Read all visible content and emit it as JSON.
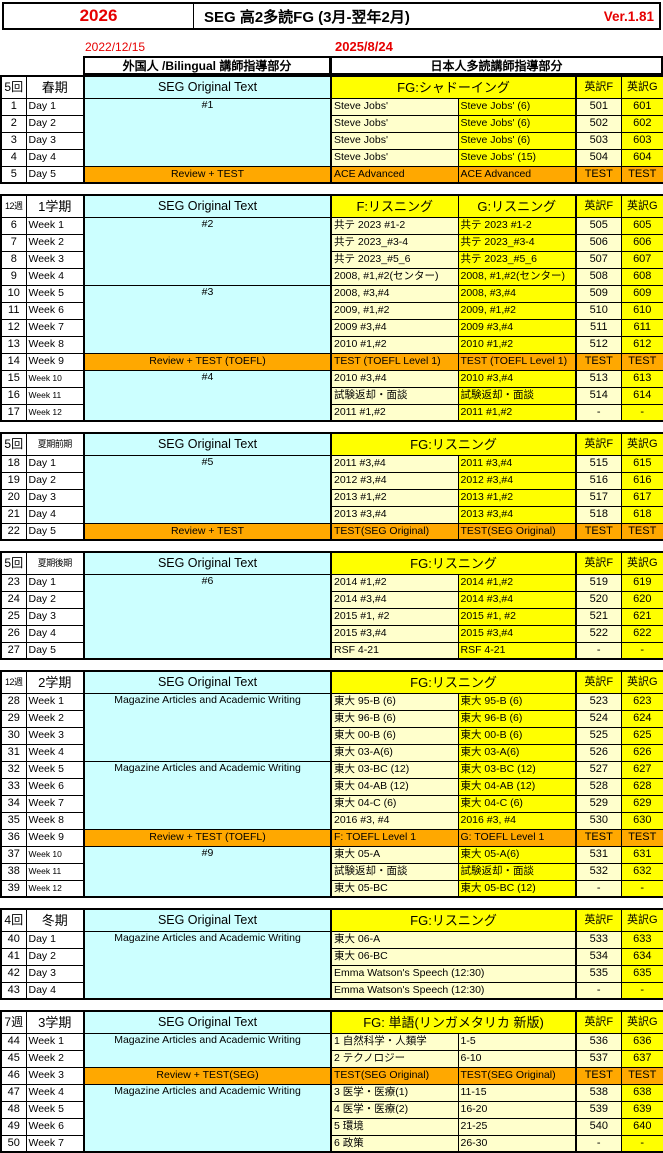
{
  "header": {
    "year": "2026",
    "title": "SEG 高2多読FG (3月-翌年2月)",
    "version": "Ver.1.81",
    "date_left": "2022/12/15",
    "date_right": "2025/8/24",
    "col_foreign": "外国人 /Bilingual 講師指導部分",
    "col_japanese": "日本人多読講師指導部分"
  },
  "sections": [
    {
      "count": "5回",
      "term": "春期",
      "seg_header": "SEG Original Text",
      "fg_header": "FG:シャドーイング",
      "fg_split": null,
      "en_f_header": "英訳F",
      "en_g_header": "英訳G",
      "g_light": false,
      "seg_cells": [
        {
          "text": "#1",
          "rows": 4,
          "orange": false
        },
        {
          "text": "Review + TEST",
          "rows": 1,
          "orange": true
        }
      ],
      "rows": [
        {
          "no": "1",
          "day": "Day 1",
          "f": "Steve Jobs'",
          "g": "Steve Jobs' (6)",
          "ef": "501",
          "eg": "601",
          "kind": "n"
        },
        {
          "no": "2",
          "day": "Day 2",
          "f": "Steve Jobs'",
          "g": "Steve Jobs' (6)",
          "ef": "502",
          "eg": "602",
          "kind": "n"
        },
        {
          "no": "3",
          "day": "Day 3",
          "f": "Steve Jobs'",
          "g": "Steve Jobs' (6)",
          "ef": "503",
          "eg": "603",
          "kind": "n"
        },
        {
          "no": "4",
          "day": "Day 4",
          "f": "Steve Jobs'",
          "g": "Steve Jobs' (15)",
          "ef": "504",
          "eg": "604",
          "kind": "n"
        },
        {
          "no": "5",
          "day": "Day 5",
          "f": "ACE Advanced",
          "g": "ACE Advanced",
          "ef": "TEST",
          "eg": "TEST",
          "kind": "t"
        }
      ]
    },
    {
      "count": "12週",
      "term": "1学期",
      "seg_header": "SEG Original Text",
      "fg_header": null,
      "fg_split": {
        "f": "F:リスニング",
        "g": "G:リスニング"
      },
      "en_f_header": "英訳F",
      "en_g_header": "英訳G",
      "g_light": false,
      "seg_cells": [
        {
          "text": "#2",
          "rows": 4,
          "orange": false
        },
        {
          "text": "#3",
          "rows": 4,
          "orange": false
        },
        {
          "text": "Review + TEST (TOEFL)",
          "rows": 1,
          "orange": true
        },
        {
          "text": "#4",
          "rows": 3,
          "orange": false
        }
      ],
      "rows": [
        {
          "no": "6",
          "day": "Week 1",
          "f": "共テ 2023 #1-2",
          "g": "共テ 2023 #1-2",
          "ef": "505",
          "eg": "605",
          "kind": "n"
        },
        {
          "no": "7",
          "day": "Week 2",
          "f": "共テ 2023_#3-4",
          "g": "共テ 2023_#3-4",
          "ef": "506",
          "eg": "606",
          "kind": "n"
        },
        {
          "no": "8",
          "day": "Week 3",
          "f": "共テ 2023_#5_6",
          "g": "共テ 2023_#5_6",
          "ef": "507",
          "eg": "607",
          "kind": "n"
        },
        {
          "no": "9",
          "day": "Week 4",
          "f": "2008, #1,#2(センター)",
          "g": "2008, #1,#2(センター)",
          "ef": "508",
          "eg": "608",
          "kind": "n"
        },
        {
          "no": "10",
          "day": "Week 5",
          "f": "2008, #3,#4",
          "g": "2008, #3,#4",
          "ef": "509",
          "eg": "609",
          "kind": "n"
        },
        {
          "no": "11",
          "day": "Week 6",
          "f": "2009, #1,#2",
          "g": "2009, #1,#2",
          "ef": "510",
          "eg": "610",
          "kind": "n"
        },
        {
          "no": "12",
          "day": "Week 7",
          "f": "2009 #3,#4",
          "g": "2009 #3,#4",
          "ef": "511",
          "eg": "611",
          "kind": "n"
        },
        {
          "no": "13",
          "day": "Week 8",
          "f": "2010 #1,#2",
          "g": "2010 #1,#2",
          "ef": "512",
          "eg": "612",
          "kind": "n"
        },
        {
          "no": "14",
          "day": "Week 9",
          "f": "TEST (TOEFL Level 1)",
          "g": "TEST (TOEFL Level 1)",
          "ef": "TEST",
          "eg": "TEST",
          "kind": "t"
        },
        {
          "no": "15",
          "day": "Week 10",
          "f": "2010 #3,#4",
          "g": "2010 #3,#4",
          "ef": "513",
          "eg": "613",
          "kind": "n"
        },
        {
          "no": "16",
          "day": "Week 11",
          "f": "試験返却・面談",
          "g": "試験返却・面談",
          "ef": "514",
          "eg": "614",
          "kind": "n"
        },
        {
          "no": "17",
          "day": "Week 12",
          "f": "2011 #1,#2",
          "g": "2011 #1,#2",
          "ef": "-",
          "eg": "-",
          "kind": "n"
        }
      ]
    },
    {
      "count": "5回",
      "term": "夏期前期",
      "seg_header": "SEG Original Text",
      "fg_header": "FG:リスニング",
      "fg_split": null,
      "en_f_header": "英訳F",
      "en_g_header": "英訳G",
      "g_light": false,
      "seg_cells": [
        {
          "text": "#5",
          "rows": 4,
          "orange": false
        },
        {
          "text": "Review + TEST",
          "rows": 1,
          "orange": true
        }
      ],
      "rows": [
        {
          "no": "18",
          "day": "Day 1",
          "f": "2011 #3,#4",
          "g": "2011 #3,#4",
          "ef": "515",
          "eg": "615",
          "kind": "n"
        },
        {
          "no": "19",
          "day": "Day 2",
          "f": "2012 #3,#4",
          "g": "2012 #3,#4",
          "ef": "516",
          "eg": "616",
          "kind": "n"
        },
        {
          "no": "20",
          "day": "Day 3",
          "f": "2013 #1,#2",
          "g": "2013 #1,#2",
          "ef": "517",
          "eg": "617",
          "kind": "n"
        },
        {
          "no": "21",
          "day": "Day 4",
          "f": "2013 #3,#4",
          "g": "2013 #3,#4",
          "ef": "518",
          "eg": "618",
          "kind": "n"
        },
        {
          "no": "22",
          "day": "Day 5",
          "f": "TEST(SEG Original)",
          "g": "TEST(SEG Original)",
          "ef": "TEST",
          "eg": "TEST",
          "kind": "t"
        }
      ]
    },
    {
      "count": "5回",
      "term": "夏期後期",
      "seg_header": "SEG Original Text",
      "fg_header": "FG:リスニング",
      "fg_split": null,
      "en_f_header": "英訳F",
      "en_g_header": "英訳G",
      "g_light": false,
      "seg_cells": [
        {
          "text": "#6",
          "rows": 5,
          "orange": false
        }
      ],
      "rows": [
        {
          "no": "23",
          "day": "Day 1",
          "f": "2014 #1,#2",
          "g": "2014 #1,#2",
          "ef": "519",
          "eg": "619",
          "kind": "n"
        },
        {
          "no": "24",
          "day": "Day 2",
          "f": "2014 #3,#4",
          "g": "2014 #3,#4",
          "ef": "520",
          "eg": "620",
          "kind": "n"
        },
        {
          "no": "25",
          "day": "Day 3",
          "f": "2015 #1, #2",
          "g": "2015 #1, #2",
          "ef": "521",
          "eg": "621",
          "kind": "n"
        },
        {
          "no": "26",
          "day": "Day 4",
          "f": "2015 #3,#4",
          "g": "2015 #3,#4",
          "ef": "522",
          "eg": "622",
          "kind": "n"
        },
        {
          "no": "27",
          "day": "Day 5",
          "f": "RSF 4-21",
          "g": "RSF 4-21",
          "ef": "-",
          "eg": "-",
          "kind": "n"
        }
      ]
    },
    {
      "count": "12週",
      "term": "2学期",
      "seg_header": "SEG Original Text",
      "fg_header": "FG:リスニング",
      "fg_split": null,
      "en_f_header": "英訳F",
      "en_g_header": "英訳G",
      "g_light": false,
      "seg_cells": [
        {
          "text": "Magazine Articles and Academic Writing",
          "rows": 4,
          "orange": false
        },
        {
          "text": "Magazine Articles and Academic Writing",
          "rows": 4,
          "orange": false
        },
        {
          "text": "Review + TEST (TOEFL)",
          "rows": 1,
          "orange": true
        },
        {
          "text": "#9",
          "rows": 3,
          "orange": false
        }
      ],
      "rows": [
        {
          "no": "28",
          "day": "Week 1",
          "f": "東大 95-B (6)",
          "g": "東大 95-B (6)",
          "ef": "523",
          "eg": "623",
          "kind": "n"
        },
        {
          "no": "29",
          "day": "Week 2",
          "f": "東大 96-B (6)",
          "g": "東大 96-B (6)",
          "ef": "524",
          "eg": "624",
          "kind": "n"
        },
        {
          "no": "30",
          "day": "Week 3",
          "f": "東大 00-B (6)",
          "g": "東大 00-B (6)",
          "ef": "525",
          "eg": "625",
          "kind": "n"
        },
        {
          "no": "31",
          "day": "Week 4",
          "f": "東大 03-A(6)",
          "g": "東大 03-A(6)",
          "ef": "526",
          "eg": "626",
          "kind": "n"
        },
        {
          "no": "32",
          "day": "Week 5",
          "f": "東大 03-BC (12)",
          "g": "東大 03-BC (12)",
          "ef": "527",
          "eg": "627",
          "kind": "n"
        },
        {
          "no": "33",
          "day": "Week 6",
          "f": "東大 04-AB (12)",
          "g": "東大 04-AB (12)",
          "ef": "528",
          "eg": "628",
          "kind": "n"
        },
        {
          "no": "34",
          "day": "Week 7",
          "f": "東大 04-C (6)",
          "g": "東大 04-C (6)",
          "ef": "529",
          "eg": "629",
          "kind": "n"
        },
        {
          "no": "35",
          "day": "Week 8",
          "f": "2016 #3, #4",
          "g": "2016 #3, #4",
          "ef": "530",
          "eg": "630",
          "kind": "n"
        },
        {
          "no": "36",
          "day": "Week 9",
          "f": "F: TOEFL Level 1",
          "g": "G: TOEFL Level 1",
          "ef": "TEST",
          "eg": "TEST",
          "kind": "t"
        },
        {
          "no": "37",
          "day": "Week 10",
          "f": "東大 05-A",
          "g": "東大 05-A(6)",
          "ef": "531",
          "eg": "631",
          "kind": "n"
        },
        {
          "no": "38",
          "day": "Week 11",
          "f": "試験返却・面談",
          "g": "試験返却・面談",
          "ef": "532",
          "eg": "632",
          "kind": "n"
        },
        {
          "no": "39",
          "day": "Week 12",
          "f": "東大 05-BC",
          "g": "東大 05-BC (12)",
          "ef": "-",
          "eg": "-",
          "kind": "n"
        }
      ]
    },
    {
      "count": "4回",
      "term": "冬期",
      "seg_header": "SEG Original Text",
      "fg_header": "FG:リスニング",
      "fg_split": null,
      "en_f_header": "英訳F",
      "en_g_header": "英訳G",
      "g_light": false,
      "seg_cells": [
        {
          "text": "Magazine Articles and Academic Writing",
          "rows": 4,
          "orange": false
        }
      ],
      "rows": [
        {
          "no": "40",
          "day": "Day 1",
          "f": "東大 06-A",
          "g": "",
          "ef": "533",
          "eg": "633",
          "kind": "m"
        },
        {
          "no": "41",
          "day": "Day 2",
          "f": "東大 06-BC",
          "g": "",
          "ef": "534",
          "eg": "634",
          "kind": "m"
        },
        {
          "no": "42",
          "day": "Day 3",
          "f": "Emma Watson's Speech (12:30)",
          "g": "",
          "ef": "535",
          "eg": "635",
          "kind": "m"
        },
        {
          "no": "43",
          "day": "Day 4",
          "f": "Emma Watson's Speech (12:30)",
          "g": "",
          "ef": "-",
          "eg": "-",
          "kind": "m"
        }
      ]
    },
    {
      "count": "7週",
      "term": "3学期",
      "seg_header": "SEG Original Text",
      "fg_header": "FG: 単語(リンガメタリカ 新版)",
      "fg_split": null,
      "en_f_header": "英訳F",
      "en_g_header": "英訳G",
      "g_light": true,
      "seg_cells": [
        {
          "text": "Magazine Articles and Academic Writing",
          "rows": 2,
          "orange": false
        },
        {
          "text": "Review + TEST(SEG)",
          "rows": 1,
          "orange": true
        },
        {
          "text": "Magazine Articles and Academic Writing",
          "rows": 4,
          "orange": false
        }
      ],
      "rows": [
        {
          "no": "44",
          "day": "Week 1",
          "f": "1 自然科学・人類学",
          "g": "1-5",
          "ef": "536",
          "eg": "636",
          "kind": "n"
        },
        {
          "no": "45",
          "day": "Week 2",
          "f": "2 テクノロジー",
          "g": "6-10",
          "ef": "537",
          "eg": "637",
          "kind": "n"
        },
        {
          "no": "46",
          "day": "Week 3",
          "f": "TEST(SEG Original)",
          "g": "TEST(SEG Original)",
          "ef": "TEST",
          "eg": "TEST",
          "kind": "t"
        },
        {
          "no": "47",
          "day": "Week 4",
          "f": "3 医学・医療(1)",
          "g": "11-15",
          "ef": "538",
          "eg": "638",
          "kind": "n"
        },
        {
          "no": "48",
          "day": "Week 5",
          "f": "4 医学・医療(2)",
          "g": "16-20",
          "ef": "539",
          "eg": "639",
          "kind": "n"
        },
        {
          "no": "49",
          "day": "Week 6",
          "f": "5 環境",
          "g": "21-25",
          "ef": "540",
          "eg": "640",
          "kind": "n"
        },
        {
          "no": "50",
          "day": "Week 7",
          "f": "6 政策",
          "g": "26-30",
          "ef": "-",
          "eg": "-",
          "kind": "n"
        }
      ]
    }
  ]
}
